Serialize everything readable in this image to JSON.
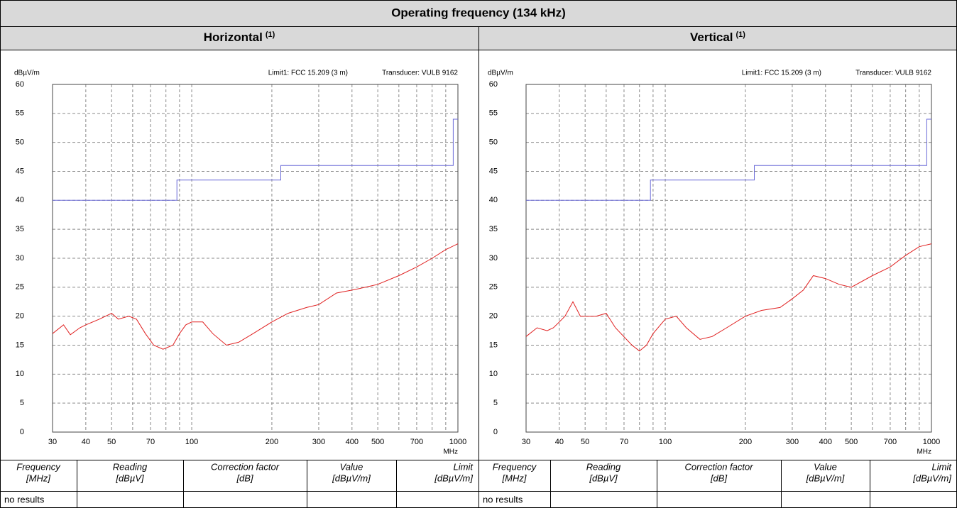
{
  "header": {
    "title": "Operating frequency (134 kHz)"
  },
  "columns": [
    {
      "label": "Horizontal",
      "note": "(1)"
    },
    {
      "label": "Vertical",
      "note": "(1)"
    }
  ],
  "chart_data": [
    {
      "type": "line",
      "ylabel": "dBµV/m",
      "xlabel": "MHz",
      "annotations": [
        "Limit1: FCC 15.209 (3 m)",
        "Transducer: VULB 9162"
      ],
      "xscale": "log",
      "xlim": [
        30,
        1000
      ],
      "ylim": [
        0,
        60
      ],
      "grid": true,
      "xticks": [
        30,
        40,
        50,
        70,
        100,
        200,
        300,
        400,
        500,
        700,
        1000
      ],
      "xgrid_minor": [
        60,
        80,
        90,
        600,
        800,
        900
      ],
      "yticks": [
        0,
        5,
        10,
        15,
        20,
        25,
        30,
        35,
        40,
        45,
        50,
        55,
        60
      ],
      "series": [
        {
          "name": "Limit1",
          "color": "#6a6ad8",
          "x": [
            30,
            88,
            88,
            216,
            216,
            960,
            960,
            1000
          ],
          "values": [
            40,
            40,
            43.5,
            43.5,
            46,
            46,
            54,
            54
          ]
        },
        {
          "name": "Measurement",
          "color": "#e02020",
          "x": [
            30,
            33,
            35,
            38,
            40,
            45,
            50,
            53,
            58,
            62,
            67,
            72,
            78,
            85,
            90,
            95,
            100,
            110,
            120,
            135,
            150,
            170,
            200,
            230,
            270,
            300,
            350,
            400,
            450,
            500,
            600,
            700,
            800,
            900,
            1000
          ],
          "values": [
            17,
            18.5,
            16.8,
            18,
            18.5,
            19.5,
            20.5,
            19.5,
            20,
            19.5,
            17,
            15,
            14.3,
            15,
            17,
            18.5,
            19,
            19,
            17,
            15,
            15.5,
            17,
            19,
            20.5,
            21.5,
            22,
            24,
            24.5,
            25,
            25.5,
            27,
            28.5,
            30,
            31.5,
            32.5
          ]
        }
      ]
    },
    {
      "type": "line",
      "ylabel": "dBµV/m",
      "xlabel": "MHz",
      "annotations": [
        "Limit1: FCC 15.209 (3 m)",
        "Transducer: VULB 9162"
      ],
      "xscale": "log",
      "xlim": [
        30,
        1000
      ],
      "ylim": [
        0,
        60
      ],
      "grid": true,
      "xticks": [
        30,
        40,
        50,
        70,
        100,
        200,
        300,
        400,
        500,
        700,
        1000
      ],
      "xgrid_minor": [
        60,
        80,
        90,
        600,
        800,
        900
      ],
      "yticks": [
        0,
        5,
        10,
        15,
        20,
        25,
        30,
        35,
        40,
        45,
        50,
        55,
        60
      ],
      "series": [
        {
          "name": "Limit1",
          "color": "#6a6ad8",
          "x": [
            30,
            88,
            88,
            216,
            216,
            960,
            960,
            1000
          ],
          "values": [
            40,
            40,
            43.5,
            43.5,
            46,
            46,
            54,
            54
          ]
        },
        {
          "name": "Measurement",
          "color": "#e02020",
          "x": [
            30,
            33,
            36,
            38,
            40,
            42,
            45,
            48,
            55,
            60,
            65,
            75,
            80,
            85,
            90,
            100,
            110,
            120,
            135,
            150,
            170,
            200,
            230,
            270,
            300,
            330,
            360,
            400,
            450,
            500,
            600,
            700,
            800,
            900,
            1000
          ],
          "values": [
            16.5,
            18,
            17.5,
            18,
            19,
            20,
            22.5,
            20,
            20,
            20.5,
            18,
            15,
            14,
            15,
            17,
            19.5,
            20,
            18,
            16,
            16.5,
            18,
            20,
            21,
            21.5,
            23,
            24.5,
            27,
            26.5,
            25.5,
            25,
            27,
            28.5,
            30.5,
            32,
            32.5
          ]
        }
      ]
    }
  ],
  "tables": [
    {
      "header": [
        [
          "Frequency",
          "[MHz]"
        ],
        [
          "Reading",
          "[dBµV]"
        ],
        [
          "Correction factor",
          "[dB]"
        ],
        [
          "Value",
          "[dBµV/m]"
        ],
        [
          "Limit",
          "[dBµV/m]"
        ]
      ],
      "rows": [
        [
          "no results"
        ]
      ]
    },
    {
      "header": [
        [
          "Frequency",
          "[MHz]"
        ],
        [
          "Reading",
          "[dBµV]"
        ],
        [
          "Correction factor",
          "[dB]"
        ],
        [
          "Value",
          "[dBµV/m]"
        ],
        [
          "Limit",
          "[dBµV/m]"
        ]
      ],
      "rows": [
        [
          "no results"
        ]
      ]
    }
  ]
}
